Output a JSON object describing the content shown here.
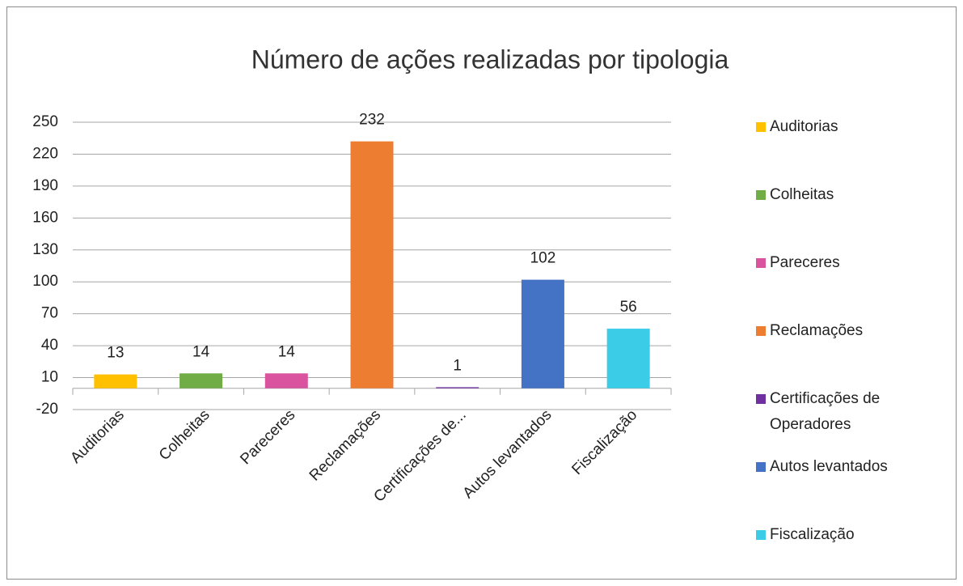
{
  "chart_data": {
    "type": "bar",
    "title": "Número de ações realizadas por tipologia",
    "categories": [
      "Auditorias",
      "Colheitas",
      "Pareceres",
      "Reclamações",
      "Certificações de...",
      "Autos levantados",
      "Fiscalização"
    ],
    "legend_labels": [
      "Auditorias",
      "Colheitas",
      "Pareceres",
      "Reclamações",
      "Certificações de Operadores",
      "Autos levantados",
      "Fiscalização"
    ],
    "values": [
      13,
      14,
      14,
      232,
      1,
      102,
      56
    ],
    "colors": [
      "#ffc000",
      "#70ad47",
      "#d9539f",
      "#ed7d31",
      "#7030a0",
      "#4472c4",
      "#3bcde8"
    ],
    "ylim": [
      -20,
      250
    ],
    "yticks": [
      -20,
      10,
      40,
      70,
      100,
      130,
      160,
      190,
      220,
      250
    ],
    "grid": true,
    "legend": "right"
  }
}
